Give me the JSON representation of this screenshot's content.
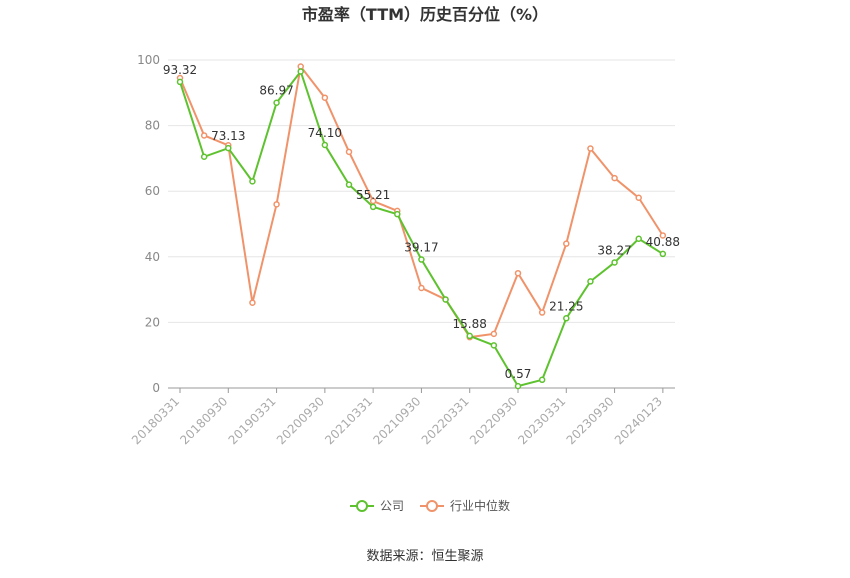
{
  "chart_data": {
    "type": "line",
    "title": "市盈率（TTM）历史百分位（%）",
    "categories": [
      "20180331",
      null,
      "20180930",
      null,
      "20190331",
      null,
      "20200930",
      null,
      "20210331",
      null,
      "20210930",
      null,
      "20220331",
      null,
      "20220930",
      null,
      "20230331",
      null,
      "20230930",
      null,
      "20240123"
    ],
    "series": [
      {
        "name": "公司",
        "color": "#5ec22f",
        "values": [
          93.32,
          70.5,
          73.13,
          63,
          86.97,
          96.5,
          74.1,
          62,
          55.21,
          53,
          39.17,
          27,
          15.88,
          13,
          0.57,
          2.5,
          21.25,
          32.5,
          38.27,
          45.5,
          40.88
        ],
        "value_labels": [
          "93.32",
          null,
          "73.13",
          null,
          "86.97",
          null,
          "74.10",
          null,
          "55.21",
          null,
          "39.17",
          null,
          "15.88",
          null,
          "0.57",
          null,
          "21.25",
          null,
          "38.27",
          null,
          "40.88"
        ]
      },
      {
        "name": "行业中位数",
        "color": "#f0936a",
        "values": [
          94.5,
          77,
          74,
          26,
          56,
          98,
          88.5,
          72,
          57,
          54,
          30.5,
          27,
          15.5,
          16.5,
          35,
          23,
          44,
          73,
          64,
          58,
          46.5
        ]
      }
    ],
    "ylim": [
      0,
      100
    ],
    "yticks": [
      0,
      20,
      40,
      60,
      80,
      100
    ],
    "grid": true,
    "legend": "bottom",
    "source": "数据来源：恒生聚源"
  }
}
